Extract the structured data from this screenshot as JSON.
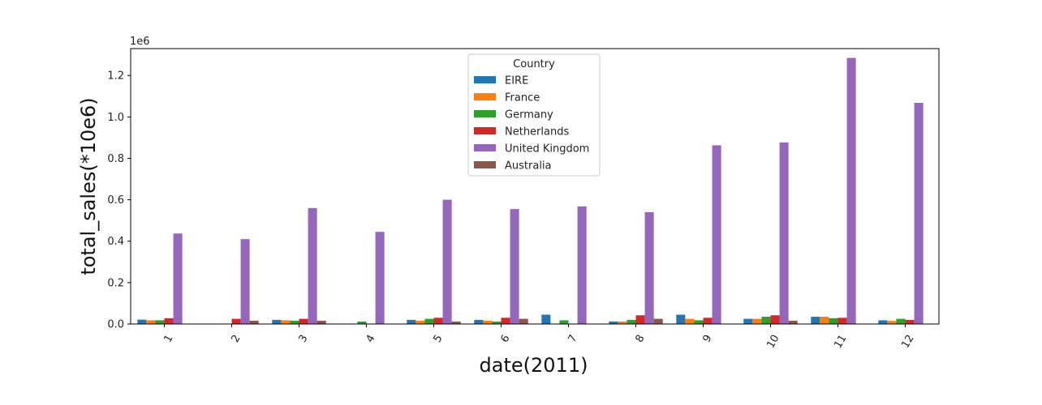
{
  "chart_data": {
    "type": "bar",
    "title": "",
    "xlabel": "date(2011)",
    "ylabel": "total_sales(*10e6)",
    "y_offset_label": "1e6",
    "ylim": [
      0,
      1.33
    ],
    "yticks": [
      0.0,
      0.2,
      0.4,
      0.6,
      0.8,
      1.0,
      1.2
    ],
    "ytick_labels": [
      "0.0",
      "0.2",
      "0.4",
      "0.6",
      "0.8",
      "1.0",
      "1.2"
    ],
    "categories": [
      "1",
      "2",
      "3",
      "4",
      "5",
      "6",
      "7",
      "8",
      "9",
      "10",
      "11",
      "12"
    ],
    "legend": {
      "title": "Country",
      "position": "upper center"
    },
    "grid": false,
    "series": [
      {
        "name": "EIRE",
        "color": "#1f77b4",
        "values": [
          0.021,
          null,
          0.02,
          null,
          0.02,
          0.02,
          0.045,
          0.012,
          0.045,
          0.025,
          0.035,
          0.018
        ]
      },
      {
        "name": "France",
        "color": "#ff7f0e",
        "values": [
          0.018,
          null,
          0.018,
          null,
          0.016,
          0.016,
          null,
          0.012,
          0.025,
          0.025,
          0.035,
          0.015
        ]
      },
      {
        "name": "Germany",
        "color": "#2ca02c",
        "values": [
          0.018,
          null,
          0.016,
          0.012,
          0.025,
          0.012,
          0.018,
          0.02,
          0.018,
          0.035,
          0.028,
          0.025
        ]
      },
      {
        "name": "Netherlands",
        "color": "#d62728",
        "values": [
          0.028,
          0.025,
          0.025,
          null,
          0.03,
          0.03,
          null,
          0.042,
          0.03,
          0.042,
          0.03,
          0.02
        ]
      },
      {
        "name": "United Kingdom",
        "color": "#9467bd",
        "values": [
          0.437,
          0.41,
          0.56,
          0.445,
          0.6,
          0.555,
          0.568,
          0.54,
          0.863,
          0.877,
          1.285,
          1.068
        ]
      },
      {
        "name": "Australia",
        "color": "#8c564b",
        "values": [
          null,
          0.016,
          0.016,
          null,
          0.012,
          0.025,
          null,
          0.025,
          null,
          0.016,
          null,
          null
        ]
      }
    ]
  }
}
